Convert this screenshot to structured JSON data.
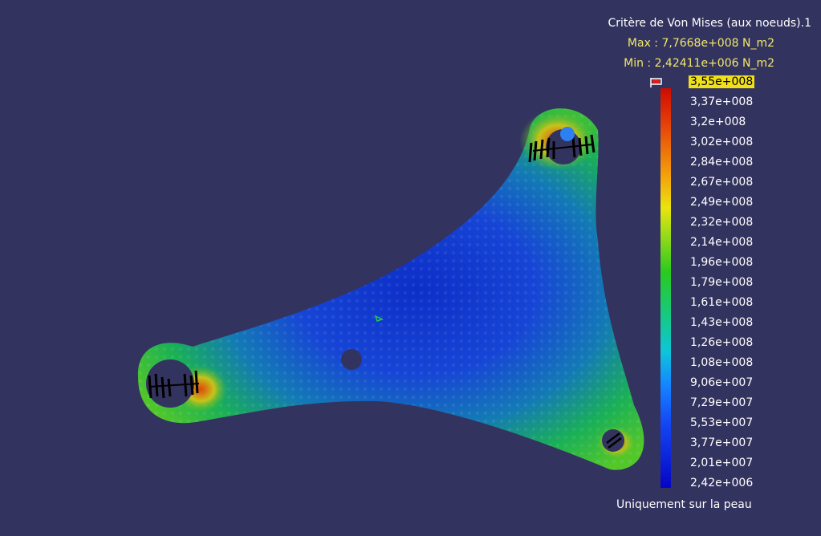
{
  "legend": {
    "title": "Critère de Von Mises (aux noeuds).1",
    "max": "Max : 7,7668e+008 N_m2",
    "min": "Min : 2,42411e+006 N_m2",
    "ticks": [
      "3,55e+008",
      "3,37e+008",
      "3,2e+008",
      "3,02e+008",
      "2,84e+008",
      "2,67e+008",
      "2,49e+008",
      "2,32e+008",
      "2,14e+008",
      "1,96e+008",
      "1,79e+008",
      "1,61e+008",
      "1,43e+008",
      "1,26e+008",
      "1,08e+008",
      "9,06e+007",
      "7,29e+007",
      "5,53e+007",
      "3,77e+007",
      "2,01e+007",
      "2,42e+006"
    ],
    "footer": "Uniquement sur la peau"
  },
  "colors": {
    "background": "#33335f",
    "legend_value_color": "#f1e76a",
    "highlight": "#efe01a"
  }
}
